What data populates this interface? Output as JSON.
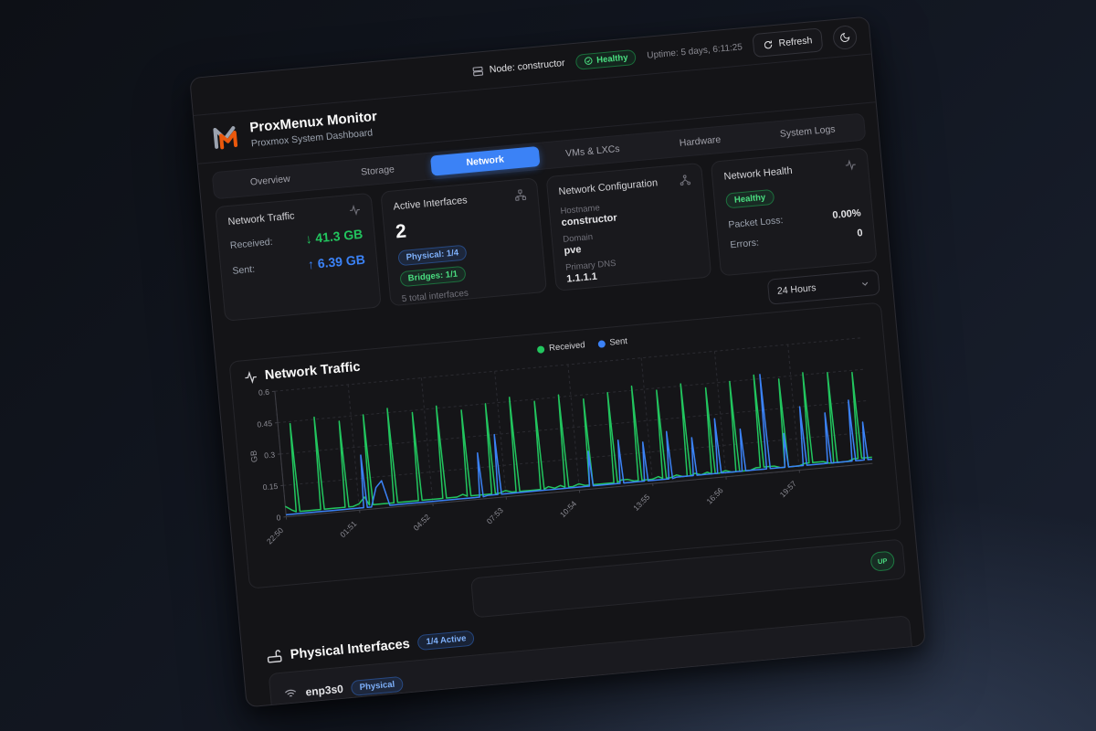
{
  "topbar": {
    "node_label": "Node: constructor",
    "health_badge": "Healthy",
    "uptime": "Uptime: 5 days, 6:11:25",
    "refresh_label": "Refresh"
  },
  "brand": {
    "title": "ProxMenux Monitor",
    "subtitle": "Proxmox System Dashboard",
    "logo_colors": {
      "gray": "#9ca3af",
      "orange": "#ea580c"
    }
  },
  "tabs": [
    {
      "label": "Overview",
      "active": false
    },
    {
      "label": "Storage",
      "active": false
    },
    {
      "label": "Network",
      "active": true
    },
    {
      "label": "VMs & LXCs",
      "active": false
    },
    {
      "label": "Hardware",
      "active": false
    },
    {
      "label": "System Logs",
      "active": false
    }
  ],
  "accent_colors": {
    "active_tab": "#3b82f6",
    "green": "#22c55e",
    "blue": "#3b82f6"
  },
  "cards": {
    "traffic": {
      "title": "Network Traffic",
      "received_label": "Received:",
      "received_value": "↓ 41.3 GB",
      "sent_label": "Sent:",
      "sent_value": "↑ 6.39 GB"
    },
    "interfaces": {
      "title": "Active Interfaces",
      "count": "2",
      "physical_badge": "Physical: 1/4",
      "bridges_badge": "Bridges: 1/1",
      "total": "5 total interfaces"
    },
    "config": {
      "title": "Network Configuration",
      "hostname_label": "Hostname",
      "hostname": "constructor",
      "domain_label": "Domain",
      "domain": "pve",
      "dns_label": "Primary DNS",
      "dns": "1.1.1.1"
    },
    "health": {
      "title": "Network Health",
      "status": "Healthy",
      "packet_loss_label": "Packet Loss:",
      "packet_loss": "0.00%",
      "errors_label": "Errors:",
      "errors": "0"
    }
  },
  "time_range": "24 Hours",
  "chart_title": "Network Traffic",
  "status_row": {
    "badge": "UP"
  },
  "physical_section": {
    "title": "Physical Interfaces",
    "active_badge": "1/4 Active",
    "rows": [
      {
        "name": "enp3s0",
        "type_badge": "Physical"
      }
    ]
  },
  "icons": {
    "node": "server-icon",
    "health": "check-circle-icon",
    "refresh": "refresh-icon",
    "theme": "moon-icon",
    "traffic_card": "activity-icon",
    "interfaces_card": "network-nodes-icon",
    "config_card": "topology-icon",
    "health_card": "activity-icon",
    "range_select": "chevron-down-icon",
    "chart_header": "activity-icon",
    "physical_section": "router-icon",
    "interface_row": "wifi-icon"
  },
  "chart_data": {
    "type": "line",
    "title": "Network Traffic",
    "xlabel": "",
    "ylabel": "GB",
    "ylim": [
      0,
      0.6
    ],
    "yticks": [
      0,
      0.15,
      0.3,
      0.45,
      0.6
    ],
    "xticks": [
      "22:50",
      "01:51",
      "04:52",
      "07:53",
      "10:54",
      "13:55",
      "16:56",
      "19:57"
    ],
    "xtick_positions": [
      0,
      12,
      24,
      36,
      48,
      60,
      72,
      84
    ],
    "points": 97,
    "grid": true,
    "legend_position": "top",
    "series": [
      {
        "name": "Received",
        "color": "#22c55e",
        "values": [
          0.05,
          0.03,
          0.44,
          0.02,
          0.02,
          0.02,
          0.46,
          0.02,
          0.02,
          0.02,
          0.43,
          0.02,
          0.03,
          0.06,
          0.45,
          0.02,
          0.02,
          0.02,
          0.47,
          0.02,
          0.02,
          0.02,
          0.44,
          0.02,
          0.02,
          0.02,
          0.46,
          0.02,
          0.02,
          0.03,
          0.43,
          0.02,
          0.02,
          0.02,
          0.45,
          0.02,
          0.03,
          0.02,
          0.47,
          0.02,
          0.02,
          0.02,
          0.44,
          0.03,
          0.02,
          0.03,
          0.46,
          0.02,
          0.03,
          0.02,
          0.43,
          0.02,
          0.02,
          0.02,
          0.45,
          0.03,
          0.03,
          0.02,
          0.47,
          0.02,
          0.02,
          0.03,
          0.44,
          0.02,
          0.03,
          0.02,
          0.46,
          0.03,
          0.02,
          0.03,
          0.43,
          0.02,
          0.03,
          0.02,
          0.45,
          0.02,
          0.02,
          0.03,
          0.47,
          0.03,
          0.03,
          0.02,
          0.44,
          0.02,
          0.02,
          0.03,
          0.46,
          0.03,
          0.03,
          0.02,
          0.45,
          0.02,
          0.02,
          0.03,
          0.44,
          0.03,
          0.03
        ]
      },
      {
        "name": "Sent",
        "color": "#3b82f6",
        "values": [
          0.01,
          0.01,
          0.01,
          0.01,
          0.01,
          0.01,
          0.01,
          0.01,
          0.01,
          0.01,
          0.01,
          0.01,
          0.01,
          0.26,
          0.01,
          0.1,
          0.13,
          0.01,
          0.01,
          0.01,
          0.01,
          0.01,
          0.01,
          0.01,
          0.01,
          0.01,
          0.01,
          0.01,
          0.01,
          0.01,
          0.01,
          0.01,
          0.22,
          0.015,
          0.015,
          0.3,
          0.015,
          0.015,
          0.015,
          0.015,
          0.015,
          0.015,
          0.015,
          0.015,
          0.015,
          0.015,
          0.015,
          0.015,
          0.015,
          0.015,
          0.18,
          0.015,
          0.015,
          0.015,
          0.015,
          0.22,
          0.015,
          0.015,
          0.015,
          0.2,
          0.015,
          0.015,
          0.015,
          0.24,
          0.02,
          0.02,
          0.02,
          0.2,
          0.02,
          0.02,
          0.02,
          0.28,
          0.02,
          0.02,
          0.02,
          0.22,
          0.02,
          0.02,
          0.02,
          0.47,
          0.02,
          0.02,
          0.18,
          0.02,
          0.02,
          0.3,
          0.02,
          0.02,
          0.02,
          0.26,
          0.02,
          0.02,
          0.02,
          0.31,
          0.02,
          0.2,
          0.02
        ]
      }
    ]
  }
}
